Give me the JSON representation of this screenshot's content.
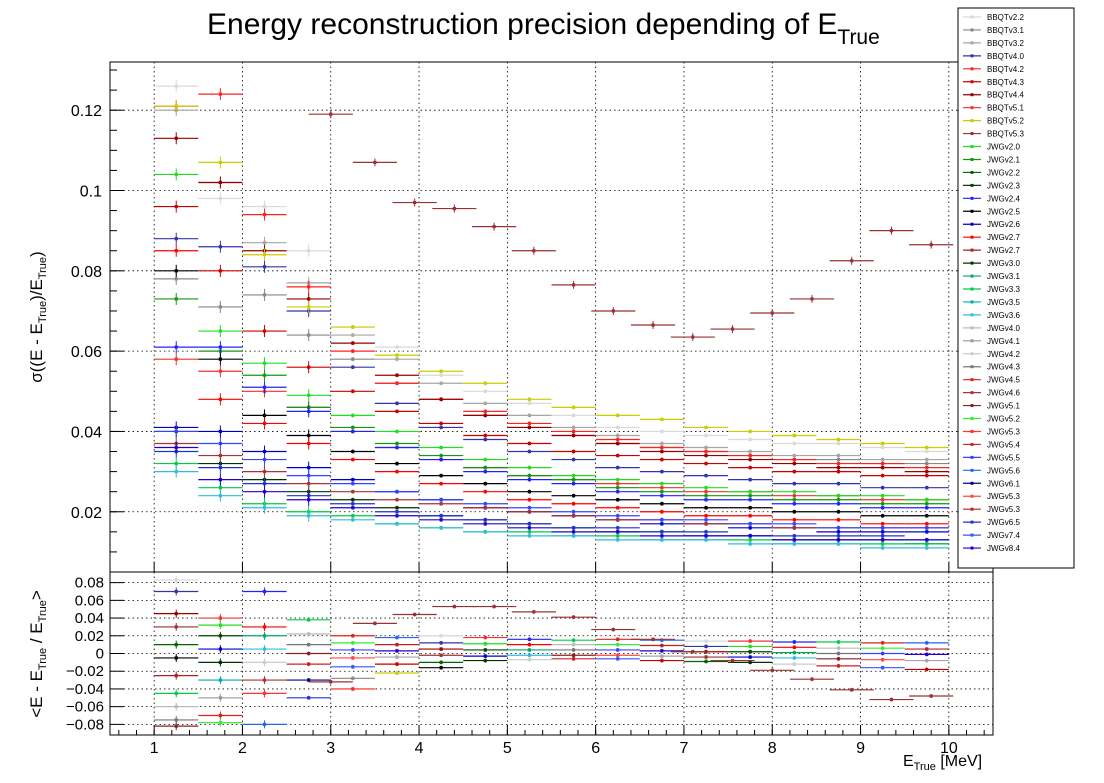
{
  "chart_data": [
    {
      "panel": "precision",
      "type": "scatter",
      "title": "Energy reconstruction precision depending of E",
      "title_subscript": "True",
      "ylabel_parts": [
        "σ((E - E",
        "True",
        ")/E",
        "True",
        ")"
      ],
      "xlim": [
        0.5,
        10.5
      ],
      "ylim": [
        0.005,
        0.132
      ],
      "y_ticks": [
        0.02,
        0.04,
        0.06,
        0.08,
        0.1,
        0.12
      ],
      "y_tick_labels": [
        "0.02",
        "0.04",
        "0.06",
        "0.08",
        "0.1",
        "0.12"
      ],
      "grid": true,
      "legend_placement": "top-right",
      "x_bins": [
        1.25,
        1.75,
        2.25,
        2.75,
        3.25,
        3.75,
        4.25,
        4.75,
        5.25,
        5.75,
        6.25,
        6.75,
        7.25,
        7.75,
        8.25,
        8.75,
        9.25,
        9.75
      ],
      "x_halfwidth": 0.25,
      "highlight_series": {
        "name": "BBQTv5.3",
        "x": [
          3.0,
          3.5,
          3.95,
          4.4,
          4.85,
          5.3,
          5.75,
          6.2,
          6.65,
          7.1,
          7.55,
          8.0,
          8.45,
          8.9,
          9.35,
          9.8
        ],
        "values": [
          0.119,
          0.107,
          0.097,
          0.0955,
          0.091,
          0.085,
          0.0765,
          0.07,
          0.0665,
          0.0635,
          0.0655,
          0.0695,
          0.073,
          0.0825,
          0.09,
          0.0865
        ]
      },
      "series_values": [
        {
          "name": "BBQTv2.2",
          "values": [
            0.126,
            0.098,
            0.096,
            0.085,
            0.066,
            0.061,
            0.054,
            0.05,
            0.047,
            0.044,
            0.041,
            0.04,
            0.039,
            0.038,
            0.037,
            0.037,
            0.036,
            0.035
          ]
        },
        {
          "name": "BBQTv3.1",
          "values": [
            0.078,
            0.071,
            0.074,
            0.064,
            0.058,
            0.052,
            0.048,
            0.044,
            0.041,
            0.039,
            0.037,
            0.036,
            0.035,
            0.034,
            0.033,
            0.033,
            0.032,
            0.032
          ]
        },
        {
          "name": "BBQTv3.2",
          "values": [
            0.12,
            0.102,
            0.087,
            0.077,
            0.064,
            0.058,
            0.052,
            0.047,
            0.044,
            0.041,
            0.039,
            0.037,
            0.036,
            0.035,
            0.034,
            0.034,
            0.033,
            0.033
          ]
        },
        {
          "name": "BBQTv4.0",
          "values": [
            0.088,
            0.086,
            0.081,
            0.07,
            0.056,
            0.047,
            0.041,
            0.038,
            0.035,
            0.033,
            0.031,
            0.03,
            0.029,
            0.028,
            0.027,
            0.027,
            0.026,
            0.026
          ]
        },
        {
          "name": "BBQTv4.2",
          "values": [
            0.121,
            0.124,
            0.094,
            0.076,
            0.06,
            0.052,
            0.048,
            0.045,
            0.042,
            0.04,
            0.038,
            0.036,
            0.035,
            0.034,
            0.033,
            0.032,
            0.032,
            0.031
          ]
        },
        {
          "name": "BBQTv4.3",
          "values": [
            0.096,
            0.08,
            0.065,
            0.056,
            0.05,
            0.045,
            0.042,
            0.039,
            0.037,
            0.035,
            0.034,
            0.033,
            0.032,
            0.031,
            0.03,
            0.03,
            0.029,
            0.029
          ]
        },
        {
          "name": "BBQTv4.4",
          "values": [
            0.113,
            0.102,
            0.085,
            0.073,
            0.062,
            0.054,
            0.048,
            0.044,
            0.041,
            0.039,
            0.037,
            0.035,
            0.034,
            0.033,
            0.032,
            0.031,
            0.031,
            0.03
          ]
        },
        {
          "name": "BBQTv5.1",
          "values": [
            0.058,
            0.055,
            0.05,
            0.046,
            0.04,
            0.036,
            0.033,
            0.031,
            0.029,
            0.028,
            0.027,
            0.026,
            0.025,
            0.025,
            0.024,
            0.024,
            0.023,
            0.023
          ]
        },
        {
          "name": "BBQTv5.2",
          "values": [
            0.121,
            0.107,
            0.084,
            0.071,
            0.066,
            0.059,
            0.055,
            0.052,
            0.048,
            0.046,
            0.044,
            0.043,
            0.041,
            0.04,
            0.039,
            0.038,
            0.037,
            0.036
          ]
        },
        {
          "name": "JWGv2.0",
          "values": [
            0.104,
            0.065,
            0.057,
            0.049,
            0.044,
            0.04,
            0.036,
            0.033,
            0.031,
            0.029,
            0.028,
            0.027,
            0.026,
            0.025,
            0.025,
            0.024,
            0.024,
            0.023
          ]
        },
        {
          "name": "JWGv2.1",
          "values": [
            0.073,
            0.06,
            0.054,
            0.046,
            0.041,
            0.037,
            0.034,
            0.031,
            0.029,
            0.028,
            0.026,
            0.025,
            0.024,
            0.024,
            0.023,
            0.023,
            0.022,
            0.022
          ]
        },
        {
          "name": "JWGv2.4",
          "values": [
            0.061,
            0.061,
            0.051,
            0.045,
            0.04,
            0.036,
            0.033,
            0.03,
            0.028,
            0.027,
            0.025,
            0.024,
            0.023,
            0.023,
            0.022,
            0.022,
            0.021,
            0.021
          ]
        },
        {
          "name": "JWGv2.5",
          "values": [
            0.08,
            0.058,
            0.044,
            0.039,
            0.035,
            0.032,
            0.029,
            0.027,
            0.025,
            0.024,
            0.023,
            0.022,
            0.021,
            0.021,
            0.02,
            0.02,
            0.019,
            0.019
          ]
        },
        {
          "name": "JWGv2.6",
          "values": [
            0.041,
            0.04,
            0.035,
            0.031,
            0.028,
            0.025,
            0.023,
            0.021,
            0.02,
            0.019,
            0.018,
            0.017,
            0.017,
            0.016,
            0.016,
            0.015,
            0.015,
            0.015
          ]
        },
        {
          "name": "JWGv2.7",
          "values": [
            0.085,
            0.048,
            0.042,
            0.037,
            0.033,
            0.03,
            0.027,
            0.025,
            0.023,
            0.022,
            0.021,
            0.02,
            0.019,
            0.019,
            0.018,
            0.018,
            0.017,
            0.017
          ]
        },
        {
          "name": "JWGv3.0",
          "values": [
            0.04,
            0.032,
            0.028,
            0.025,
            0.023,
            0.021,
            0.019,
            0.018,
            0.017,
            0.016,
            0.015,
            0.015,
            0.014,
            0.014,
            0.013,
            0.013,
            0.013,
            0.012
          ]
        },
        {
          "name": "JWGv3.3",
          "values": [
            0.032,
            0.026,
            0.022,
            0.02,
            0.019,
            0.017,
            0.016,
            0.015,
            0.015,
            0.014,
            0.014,
            0.013,
            0.013,
            0.013,
            0.012,
            0.012,
            0.012,
            0.012
          ]
        },
        {
          "name": "JWGv3.6",
          "values": [
            0.03,
            0.024,
            0.021,
            0.019,
            0.018,
            0.017,
            0.016,
            0.015,
            0.014,
            0.014,
            0.013,
            0.013,
            0.013,
            0.012,
            0.012,
            0.012,
            0.011,
            0.011
          ]
        },
        {
          "name": "JWGv4.6",
          "values": [
            0.037,
            0.034,
            0.03,
            0.027,
            0.025,
            0.023,
            0.022,
            0.021,
            0.02,
            0.019,
            0.018,
            0.018,
            0.017,
            0.017,
            0.016,
            0.016,
            0.016,
            0.016
          ]
        },
        {
          "name": "JWGv5.5",
          "values": [
            0.04,
            0.037,
            0.033,
            0.029,
            0.027,
            0.025,
            0.023,
            0.022,
            0.021,
            0.02,
            0.019,
            0.018,
            0.018,
            0.017,
            0.017,
            0.016,
            0.016,
            0.016
          ]
        },
        {
          "name": "JWGv6.5",
          "values": [
            0.035,
            0.031,
            0.027,
            0.024,
            0.022,
            0.02,
            0.019,
            0.018,
            0.017,
            0.016,
            0.016,
            0.015,
            0.015,
            0.014,
            0.014,
            0.014,
            0.014,
            0.013
          ]
        },
        {
          "name": "JWGv8.4",
          "values": [
            0.036,
            0.028,
            0.025,
            0.023,
            0.021,
            0.019,
            0.018,
            0.017,
            0.016,
            0.015,
            0.015,
            0.014,
            0.014,
            0.014,
            0.013,
            0.013,
            0.013,
            0.013
          ]
        }
      ]
    },
    {
      "panel": "bias",
      "type": "scatter",
      "ylabel_parts": [
        "<E - E",
        "True",
        " / E",
        "True",
        ">"
      ],
      "xlabel": "E",
      "xlabel_subscript": "True",
      "xlabel_unit": " [MeV]",
      "xlim": [
        0.5,
        10.5
      ],
      "ylim": [
        -0.092,
        0.092
      ],
      "x_ticks": [
        1,
        2,
        3,
        4,
        5,
        6,
        7,
        8,
        9,
        10
      ],
      "x_tick_labels": [
        "1",
        "2",
        "3",
        "4",
        "5",
        "6",
        "7",
        "8",
        "9",
        "10"
      ],
      "y_ticks": [
        -0.08,
        -0.06,
        -0.04,
        -0.02,
        0,
        0.02,
        0.04,
        0.06,
        0.08
      ],
      "y_tick_labels": [
        "−0.08",
        "−0.06",
        "−0.04",
        "−0.02",
        "0",
        "0.02",
        "0.04",
        "0.06",
        "0.08"
      ],
      "grid": true,
      "highlight_series": {
        "name": "BBQTv5.3",
        "x": [
          3.0,
          3.5,
          3.95,
          4.4,
          4.85,
          5.3,
          5.75,
          6.2,
          6.65,
          7.1,
          7.55,
          8.0,
          8.45,
          8.9,
          9.35,
          9.8
        ],
        "values": [
          -0.032,
          0.034,
          0.044,
          0.053,
          0.053,
          0.047,
          0.041,
          0.027,
          0.016,
          0.002,
          -0.008,
          -0.019,
          -0.029,
          -0.041,
          -0.052,
          -0.048
        ]
      },
      "bias_by_bin": [
        [
          0.083,
          0.07,
          0.045,
          0.03,
          0.01,
          -0.005,
          -0.025,
          -0.045,
          -0.06,
          -0.075,
          -0.082
        ],
        [
          0.04,
          0.032,
          0.02,
          0.005,
          -0.01,
          -0.03,
          -0.05,
          -0.07,
          -0.078
        ],
        [
          0.07,
          0.03,
          0.02,
          0.005,
          -0.01,
          -0.03,
          -0.045,
          -0.08
        ],
        [
          0.038,
          0.022,
          0.01,
          0.0,
          -0.012,
          -0.03,
          -0.05
        ],
        [
          0.02,
          0.012,
          0.004,
          -0.005,
          -0.015,
          -0.028,
          -0.04
        ],
        [
          0.018,
          0.01,
          0.003,
          -0.004,
          -0.012,
          -0.022
        ],
        [
          0.02,
          0.012,
          0.005,
          -0.002,
          -0.01,
          -0.016
        ],
        [
          0.018,
          0.011,
          0.004,
          -0.003,
          -0.008
        ],
        [
          0.016,
          0.01,
          0.004,
          -0.002,
          -0.007
        ],
        [
          0.015,
          0.01,
          0.004,
          -0.002,
          -0.006
        ],
        [
          0.016,
          0.01,
          0.004,
          -0.002,
          -0.006
        ],
        [
          0.015,
          0.009,
          0.003,
          -0.003,
          -0.008
        ],
        [
          0.014,
          0.008,
          0.002,
          -0.004,
          -0.009
        ],
        [
          0.014,
          0.008,
          0.002,
          -0.004,
          -0.01
        ],
        [
          0.013,
          0.007,
          0.001,
          -0.005,
          -0.012
        ],
        [
          0.013,
          0.006,
          0.0,
          -0.006,
          -0.014
        ],
        [
          0.012,
          0.006,
          0.0,
          -0.007,
          -0.016
        ],
        [
          0.012,
          0.005,
          -0.001,
          -0.008,
          -0.018
        ]
      ]
    }
  ],
  "legend": {
    "entries": [
      {
        "name": "BBQTv2.2",
        "color": "#d9d9d9"
      },
      {
        "name": "BBQTv3.1",
        "color": "#888888"
      },
      {
        "name": "BBQTv3.2",
        "color": "#a6a6a6"
      },
      {
        "name": "BBQTv4.0",
        "color": "#3333aa"
      },
      {
        "name": "BBQTv4.2",
        "color": "#ff2222"
      },
      {
        "name": "BBQTv4.3",
        "color": "#cc0000"
      },
      {
        "name": "BBQTv4.4",
        "color": "#990000"
      },
      {
        "name": "BBQTv5.1",
        "color": "#ee3333"
      },
      {
        "name": "BBQTv5.2",
        "color": "#cccc00"
      },
      {
        "name": "BBQTv5.3",
        "color": "#993333"
      },
      {
        "name": "JWGv2.0",
        "color": "#22dd22"
      },
      {
        "name": "JWGv2.1",
        "color": "#119911"
      },
      {
        "name": "JWGv2.2",
        "color": "#006600"
      },
      {
        "name": "JWGv2.3",
        "color": "#004400"
      },
      {
        "name": "JWGv2.4",
        "color": "#2222ff"
      },
      {
        "name": "JWGv2.5",
        "color": "#000000"
      },
      {
        "name": "JWGv2.6",
        "color": "#0000cc"
      },
      {
        "name": "JWGv2.7",
        "color": "#ff0000"
      },
      {
        "name": "JWGv2.7",
        "color": "#aa2222"
      },
      {
        "name": "JWGv3.0",
        "color": "#003300"
      },
      {
        "name": "JWGv3.1",
        "color": "#00aa66"
      },
      {
        "name": "JWGv3.3",
        "color": "#00cc44"
      },
      {
        "name": "JWGv3.5",
        "color": "#00aaaa"
      },
      {
        "name": "JWGv3.6",
        "color": "#33bbdd"
      },
      {
        "name": "JWGv4.0",
        "color": "#bbbbbb"
      },
      {
        "name": "JWGv4.1",
        "color": "#999999"
      },
      {
        "name": "JWGv4.2",
        "color": "#cccccc"
      },
      {
        "name": "JWGv4.3",
        "color": "#777777"
      },
      {
        "name": "JWGv4.5",
        "color": "#dd2222"
      },
      {
        "name": "JWGv4.6",
        "color": "#aa3333"
      },
      {
        "name": "JWGv5.1",
        "color": "#882222"
      },
      {
        "name": "JWGv5.2",
        "color": "#33ee33"
      },
      {
        "name": "JWGv5.3",
        "color": "#ff3333"
      },
      {
        "name": "JWGv5.4",
        "color": "#cc2222"
      },
      {
        "name": "JWGv5.5",
        "color": "#3344ff"
      },
      {
        "name": "JWGv5.6",
        "color": "#2266ee"
      },
      {
        "name": "JWGv6.1",
        "color": "#000088"
      },
      {
        "name": "JWGv5.3",
        "color": "#ff4444"
      },
      {
        "name": "JWGv5.3",
        "color": "#bb2222"
      },
      {
        "name": "JWGv6.5",
        "color": "#2233cc"
      },
      {
        "name": "JWGv7.4",
        "color": "#3355ff"
      },
      {
        "name": "JWGv8.4",
        "color": "#2200cc"
      }
    ]
  }
}
